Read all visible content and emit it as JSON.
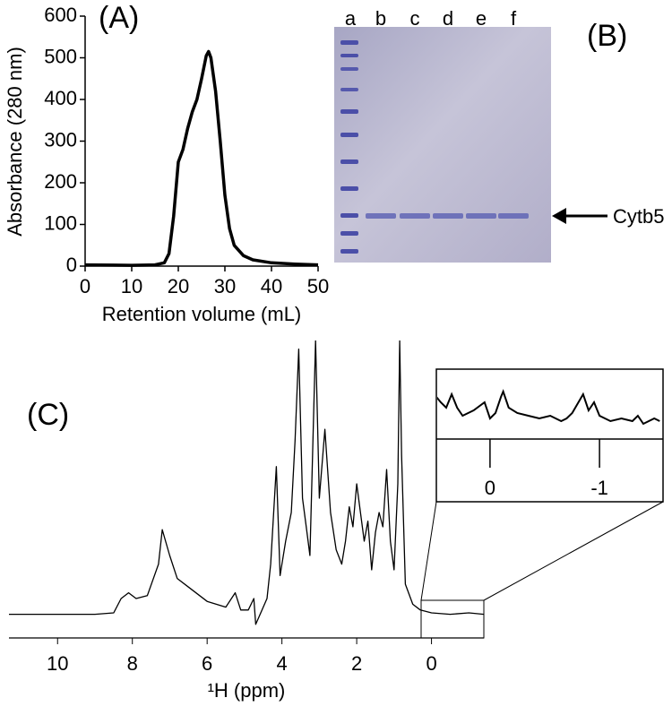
{
  "chart_data": [
    {
      "type": "line",
      "panel_label": "(A)",
      "x_label": "Retention volume (mL)",
      "y_label": "Absorbance (280 nm)",
      "x": [
        0,
        10,
        15,
        17,
        18,
        19,
        20,
        21,
        22,
        23,
        24,
        25,
        26,
        26.5,
        27,
        28,
        29,
        30,
        31,
        32,
        34,
        36,
        40,
        45,
        50
      ],
      "values": [
        3,
        2,
        3,
        8,
        30,
        120,
        250,
        280,
        330,
        370,
        400,
        450,
        505,
        515,
        500,
        420,
        300,
        170,
        90,
        50,
        25,
        15,
        8,
        5,
        3
      ],
      "xlim": [
        0,
        50
      ],
      "xticks": [
        0,
        10,
        20,
        30,
        40,
        50
      ],
      "ylim": [
        0,
        600
      ],
      "yticks": [
        0,
        100,
        200,
        300,
        400,
        500,
        600
      ],
      "color": "#000000"
    },
    {
      "type": "image",
      "panel_label": "(B)",
      "lanes": [
        "a",
        "b",
        "c",
        "d",
        "e",
        "f"
      ],
      "annotation": "Cytb5"
    },
    {
      "type": "line",
      "panel_label": "(C)",
      "x_label": "¹H (ppm)",
      "x": [
        11.3,
        10,
        9,
        8.5,
        8.3,
        8.1,
        7.9,
        7.6,
        7.3,
        7.2,
        7.0,
        6.8,
        6.5,
        6,
        5.5,
        5.25,
        5.1,
        4.9,
        4.75,
        4.7,
        4.6,
        4.4,
        4.3,
        4.15,
        4.05,
        3.9,
        3.75,
        3.65,
        3.55,
        3.45,
        3.35,
        3.25,
        3.1,
        3.0,
        2.85,
        2.7,
        2.55,
        2.4,
        2.3,
        2.2,
        2.1,
        2.0,
        1.9,
        1.8,
        1.7,
        1.6,
        1.5,
        1.4,
        1.3,
        1.2,
        1.1,
        1.0,
        0.9,
        0.85,
        0.8,
        0.7,
        0.5,
        0.3,
        0,
        -0.5,
        -1,
        -1.4
      ],
      "values": [
        4.5,
        4.5,
        4.5,
        5,
        10,
        12,
        10,
        11,
        22,
        34,
        25,
        17,
        14,
        9,
        7,
        12,
        6,
        6,
        10,
        1,
        4,
        10,
        22,
        56,
        18,
        30,
        40,
        65,
        97,
        45,
        35,
        25,
        100,
        45,
        69,
        40,
        27,
        22,
        30,
        42,
        35,
        50,
        40,
        30,
        37,
        20,
        33,
        40,
        35,
        55,
        30,
        20,
        50,
        100,
        60,
        15,
        8,
        6,
        5,
        4.5,
        5,
        4.5
      ],
      "xlim": [
        11.3,
        -1.4
      ],
      "xticks": [
        10,
        8,
        6,
        4,
        2,
        0
      ],
      "ylim": [
        0,
        100
      ],
      "color": "#000000",
      "inset": {
        "x": [
          0.49,
          0.45,
          0.4,
          0.35,
          0.3,
          0.25,
          0.15,
          0.05,
          0,
          -0.05,
          -0.1,
          -0.12,
          -0.17,
          -0.25,
          -0.35,
          -0.45,
          -0.55,
          -0.65,
          -0.7,
          -0.75,
          -0.85,
          -0.9,
          -0.95,
          -1,
          -1.1,
          -1.2,
          -1.3,
          -1.35,
          -1.4,
          -1.5,
          -1.55
        ],
        "values": [
          7,
          6,
          5,
          7.5,
          5,
          3.5,
          4.5,
          6,
          3,
          4,
          7,
          8,
          5,
          4,
          3.5,
          3,
          3.5,
          2.5,
          3,
          4,
          7.5,
          4.5,
          6,
          3.5,
          2.5,
          3,
          2.5,
          3.5,
          2,
          3,
          2.5
        ],
        "xlim": [
          0.49,
          -1.58
        ],
        "xticks": [
          0,
          -1
        ],
        "ylim": [
          0,
          10
        ]
      }
    }
  ]
}
